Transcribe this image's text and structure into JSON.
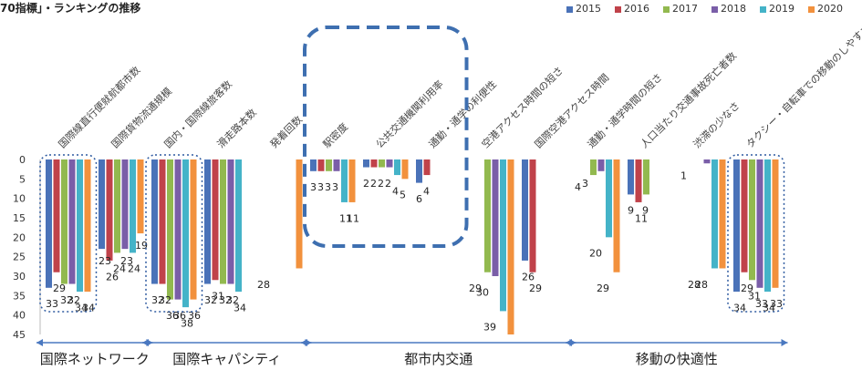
{
  "title": "70指標」・ランキングの推移",
  "chart_data": {
    "type": "bar",
    "title": "70指標」・ランキングの推移",
    "ylim": [
      0,
      45
    ],
    "yticks": [
      0,
      5,
      10,
      15,
      20,
      25,
      30,
      35,
      40,
      45
    ],
    "y_inverted": true,
    "grid": false,
    "legend_position": "top-right",
    "categories": [
      "国際線直行便就航都市数",
      "国際貨物流通規模",
      "国内・国際線旅客数",
      "滑走路本数",
      "発着回数",
      "駅密度",
      "公共交通機関利用率",
      "通勤・通学の利便性",
      "空港アクセス時間の短さ",
      "国際空港アクセス時間",
      "通勤・通学時間の短さ",
      "人口当たり交通事故死亡者数",
      "渋滞の少なさ",
      "タクシー・自転車での移動のしやすさ"
    ],
    "series": [
      {
        "name": "2015",
        "color": "#4a72b8",
        "values": [
          33,
          23,
          32,
          32,
          null,
          3,
          2,
          6,
          null,
          26,
          null,
          9,
          null,
          34
        ]
      },
      {
        "name": "2016",
        "color": "#c0424a",
        "values": [
          29,
          26,
          32,
          31,
          null,
          3,
          2,
          4,
          null,
          29,
          null,
          11,
          null,
          29
        ]
      },
      {
        "name": "2017",
        "color": "#92b94f",
        "values": [
          32,
          24,
          36,
          32,
          null,
          3,
          2,
          null,
          29,
          null,
          4,
          9,
          null,
          31
        ]
      },
      {
        "name": "2018",
        "color": "#7a5ea8",
        "values": [
          32,
          23,
          36,
          32,
          null,
          3,
          2,
          null,
          30,
          null,
          3,
          null,
          1,
          33
        ]
      },
      {
        "name": "2019",
        "color": "#44b3c8",
        "values": [
          34,
          24,
          38,
          34,
          null,
          11,
          4,
          null,
          39,
          null,
          20,
          null,
          28,
          34
        ]
      },
      {
        "name": "2020",
        "color": "#f2913d",
        "values": [
          34,
          19,
          36,
          null,
          28,
          11,
          5,
          null,
          45,
          null,
          29,
          null,
          28,
          33
        ]
      }
    ],
    "labels": [
      {
        "cat": 0,
        "text": "33",
        "at": "low",
        "at_v": 38
      },
      {
        "cat": 0,
        "text": "29",
        "at": "low",
        "at_v": 34
      },
      {
        "cat": 0,
        "text": "32",
        "at": "low",
        "at_v": 37
      },
      {
        "cat": 0,
        "text": "32",
        "at": "low",
        "at_v": 37
      },
      {
        "cat": 0,
        "text": "34",
        "at": "low",
        "at_v": 39
      },
      {
        "cat": 0,
        "text": "34",
        "at": "low",
        "at_v": 39
      },
      {
        "cat": 1,
        "text": "23",
        "at": "low",
        "at_v": 27
      },
      {
        "cat": 1,
        "text": "26",
        "at": "low",
        "at_v": 31
      },
      {
        "cat": 1,
        "text": "24",
        "at": "low",
        "at_v": 29
      },
      {
        "cat": 1,
        "text": "23",
        "at": "low",
        "at_v": 27
      },
      {
        "cat": 1,
        "text": "24",
        "at": "low",
        "at_v": 29
      },
      {
        "cat": 1,
        "text": "19",
        "at": "low",
        "at_v": 23
      },
      {
        "cat": 2,
        "text": "32",
        "at": "low",
        "at_v": 37
      },
      {
        "cat": 2,
        "text": "32",
        "at": "low",
        "at_v": 37
      },
      {
        "cat": 2,
        "text": "36",
        "at": "low",
        "at_v": 41
      },
      {
        "cat": 2,
        "text": "36",
        "at": "low",
        "at_v": 41
      },
      {
        "cat": 2,
        "text": "38",
        "at": "low",
        "at_v": 43
      },
      {
        "cat": 2,
        "text": "36",
        "at": "low",
        "at_v": 41
      },
      {
        "cat": 3,
        "text": "32",
        "at": "low",
        "at_v": 37
      },
      {
        "cat": 3,
        "text": "31",
        "at": "low",
        "at_v": 36
      },
      {
        "cat": 3,
        "text": "32",
        "at": "low",
        "at_v": 37
      },
      {
        "cat": 3,
        "text": "32",
        "at": "low",
        "at_v": 37
      },
      {
        "cat": 3,
        "text": "34",
        "at": "low",
        "at_v": 39
      },
      {
        "cat": 4,
        "text": "28",
        "at": "low",
        "at_v": 33
      },
      {
        "cat": 5,
        "text": "3",
        "at": "low",
        "at_v": 8
      },
      {
        "cat": 5,
        "text": "3",
        "at": "low",
        "at_v": 8
      },
      {
        "cat": 5,
        "text": "3",
        "at": "low",
        "at_v": 8
      },
      {
        "cat": 5,
        "text": "3",
        "at": "low",
        "at_v": 8
      },
      {
        "cat": 5,
        "text": "11",
        "at": "low",
        "at_v": 16
      },
      {
        "cat": 5,
        "text": "11",
        "at": "low",
        "at_v": 16
      },
      {
        "cat": 6,
        "text": "2",
        "at": "low",
        "at_v": 7
      },
      {
        "cat": 6,
        "text": "2",
        "at": "low",
        "at_v": 7
      },
      {
        "cat": 6,
        "text": "2",
        "at": "low",
        "at_v": 7
      },
      {
        "cat": 6,
        "text": "2",
        "at": "low",
        "at_v": 7
      },
      {
        "cat": 6,
        "text": "4",
        "at": "low",
        "at_v": 9
      },
      {
        "cat": 6,
        "text": "5",
        "at": "low",
        "at_v": 10
      },
      {
        "cat": 7,
        "text": "6",
        "at": "low",
        "at_v": 11
      },
      {
        "cat": 7,
        "text": "4",
        "at": "low",
        "at_v": 9
      },
      {
        "cat": 8,
        "text": "29",
        "at": "low",
        "at_v": 34
      },
      {
        "cat": 8,
        "text": "30",
        "at": "low",
        "at_v": 35
      },
      {
        "cat": 8,
        "text": "39",
        "at": "low",
        "at_v": 44
      },
      {
        "cat": 9,
        "text": "26",
        "at": "low",
        "at_v": 31
      },
      {
        "cat": 9,
        "text": "29",
        "at": "low",
        "at_v": 34
      },
      {
        "cat": 10,
        "text": "4",
        "at": "low",
        "at_v": 8
      },
      {
        "cat": 10,
        "text": "3",
        "at": "low",
        "at_v": 7
      },
      {
        "cat": 10,
        "text": "20",
        "at": "low",
        "at_v": 25
      },
      {
        "cat": 10,
        "text": "29",
        "at": "low",
        "at_v": 34
      },
      {
        "cat": 11,
        "text": "9",
        "at": "low",
        "at_v": 14
      },
      {
        "cat": 11,
        "text": "11",
        "at": "low",
        "at_v": 16
      },
      {
        "cat": 11,
        "text": "9",
        "at": "low",
        "at_v": 14
      },
      {
        "cat": 12,
        "text": "1",
        "at": "low",
        "at_v": 5
      },
      {
        "cat": 12,
        "text": "28",
        "at": "low",
        "at_v": 33
      },
      {
        "cat": 12,
        "text": "28",
        "at": "low",
        "at_v": 33
      },
      {
        "cat": 13,
        "text": "34",
        "at": "low",
        "at_v": 39
      },
      {
        "cat": 13,
        "text": "29",
        "at": "low",
        "at_v": 34
      },
      {
        "cat": 13,
        "text": "31",
        "at": "low",
        "at_v": 36
      },
      {
        "cat": 13,
        "text": "33",
        "at": "low",
        "at_v": 38
      },
      {
        "cat": 13,
        "text": "34",
        "at": "low",
        "at_v": 39
      },
      {
        "cat": 13,
        "text": "33",
        "at": "low",
        "at_v": 38
      }
    ],
    "groups": [
      {
        "label": "国際ネットワーク",
        "from": 0,
        "to": 1
      },
      {
        "label": "国際キャパシティ",
        "from": 2,
        "to": 4
      },
      {
        "label": "都市内交通",
        "from": 5,
        "to": 9
      },
      {
        "label": "移動の快適性",
        "from": 10,
        "to": 13
      }
    ],
    "highlights": [
      {
        "from": 0,
        "to": 0,
        "style": "dotted"
      },
      {
        "from": 2,
        "to": 2,
        "style": "dotted"
      },
      {
        "from": 5,
        "to": 7,
        "style": "dashed"
      },
      {
        "from": 13,
        "to": 13,
        "style": "dotted"
      }
    ]
  }
}
